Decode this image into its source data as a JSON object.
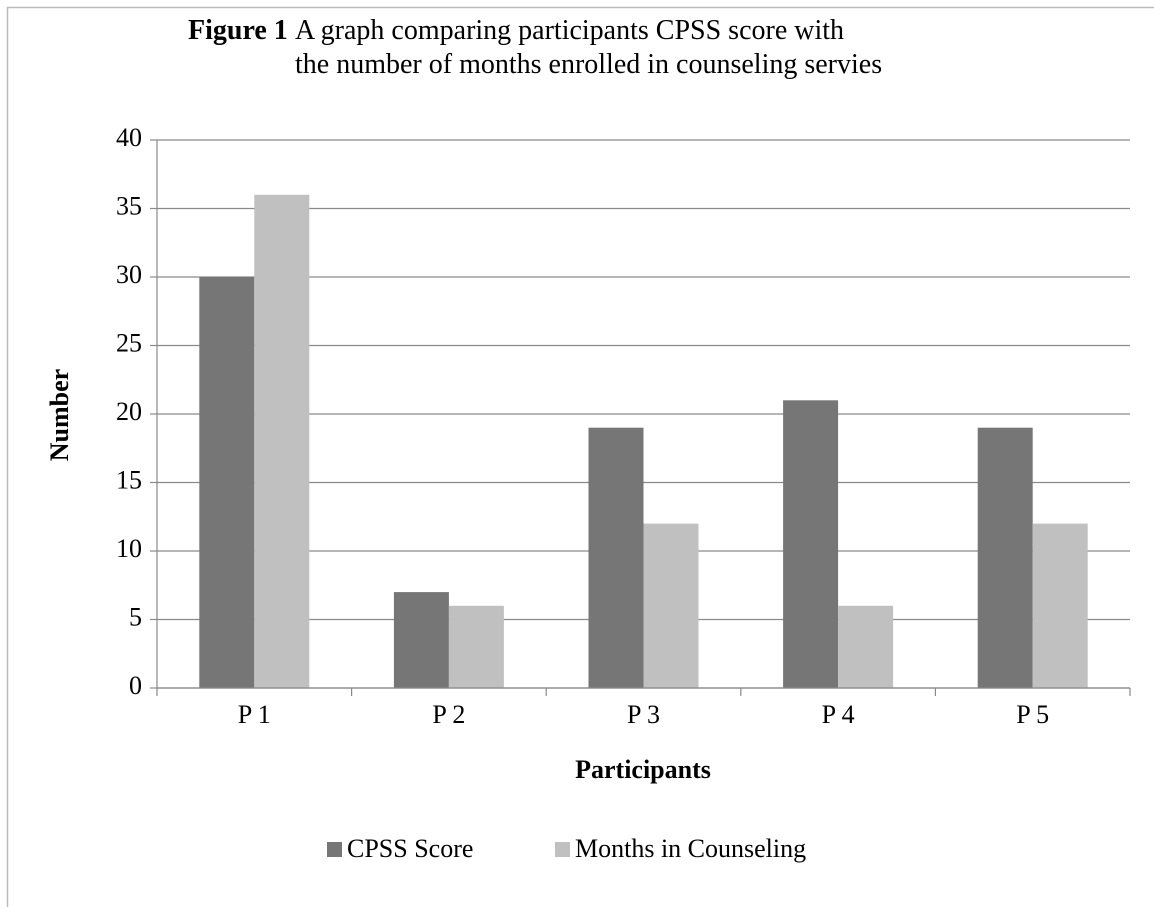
{
  "chart_data": {
    "type": "bar",
    "figure_label": "Figure 1",
    "title": "A graph comparing participants CPSS score with the number of months enrolled in counseling servies",
    "x_label": "Participants",
    "y_label": "Number",
    "categories": [
      "P 1",
      "P 2",
      "P 3",
      "P 4",
      "P 5"
    ],
    "series": [
      {
        "name": "CPSS Score",
        "color": "#767676",
        "values": [
          30,
          7,
          19,
          21,
          19
        ]
      },
      {
        "name": "Months in Counseling",
        "color": "#c0c0c0",
        "values": [
          36,
          6,
          12,
          6,
          12
        ]
      }
    ],
    "ylim": [
      0,
      40
    ],
    "yticks": [
      0,
      5,
      10,
      15,
      20,
      25,
      30,
      35,
      40
    ],
    "grid": true,
    "legend": "bottom"
  }
}
